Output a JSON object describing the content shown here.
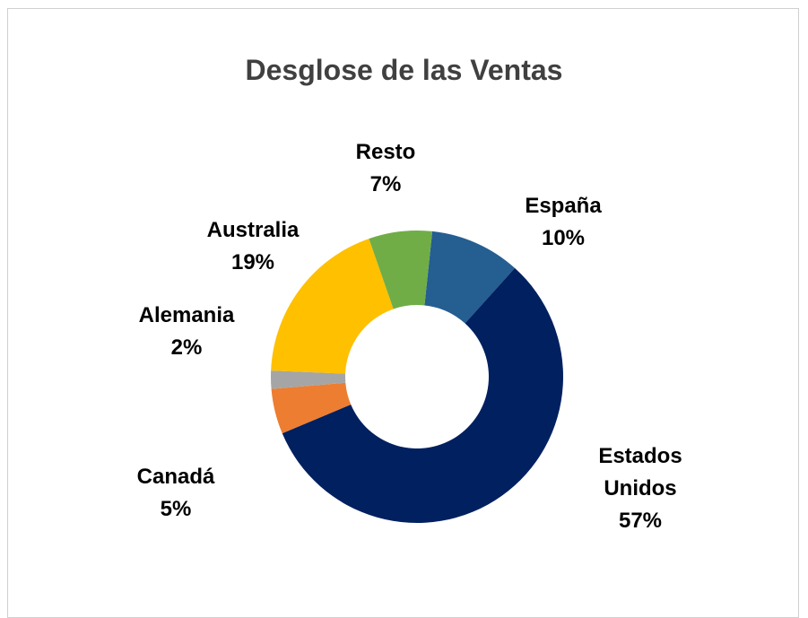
{
  "chart_data": {
    "type": "donut",
    "title": "Desglose de las Ventas",
    "categories": [
      "España",
      "Estados Unidos",
      "Canadá",
      "Alemania",
      "Australia",
      "Resto"
    ],
    "values": [
      10,
      57,
      5,
      2,
      19,
      7
    ],
    "value_labels": [
      "10%",
      "57%",
      "5%",
      "2%",
      "19%",
      "7%"
    ],
    "colors": [
      "#255e91",
      "#002060",
      "#ed7d31",
      "#a5a5a5",
      "#ffc000",
      "#70ad47"
    ]
  }
}
